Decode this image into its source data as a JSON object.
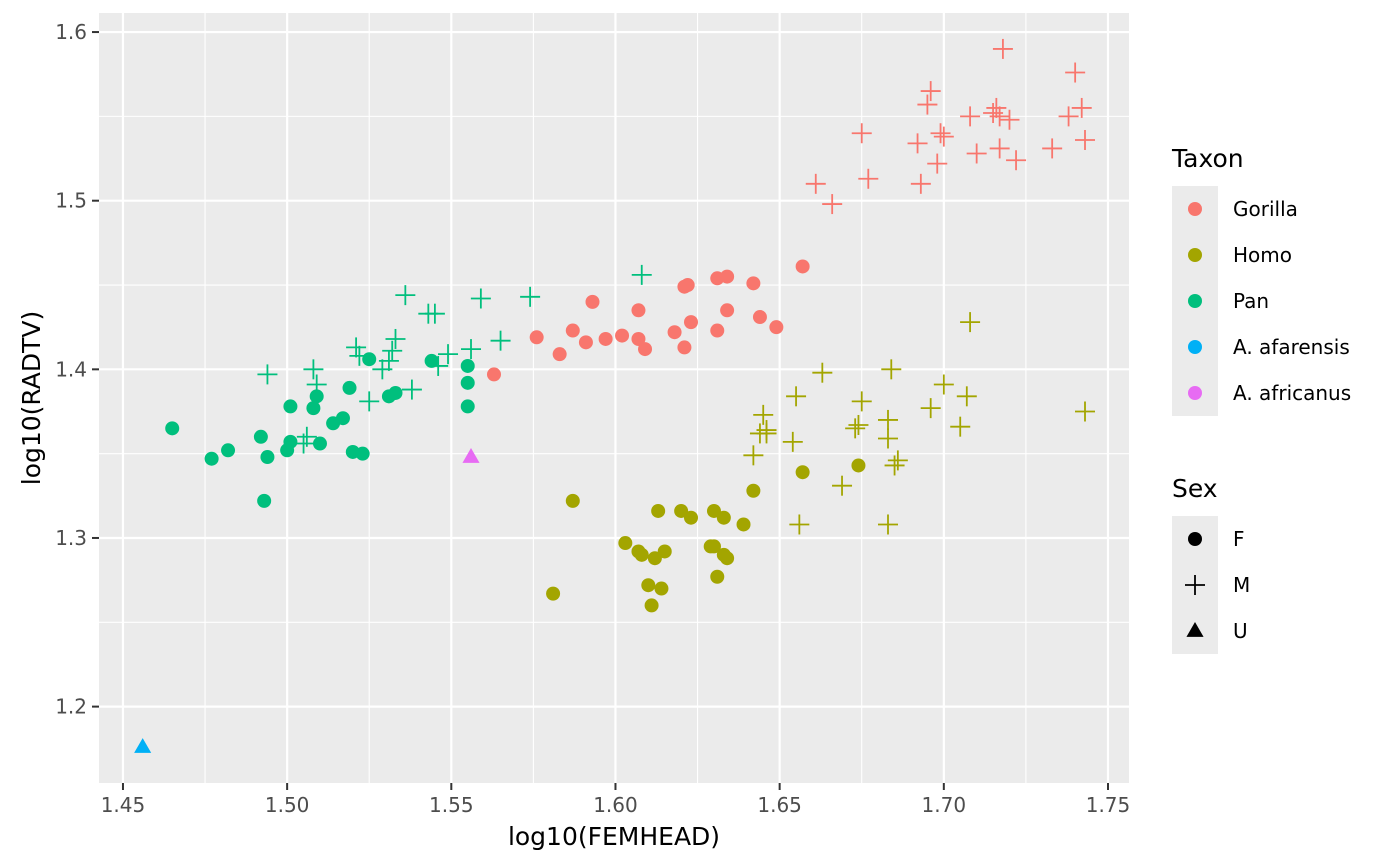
{
  "chart_data": {
    "type": "scatter",
    "xlabel": "log10(FEMHEAD)",
    "ylabel": "log10(RADTV)",
    "xlim": [
      1.4427,
      1.7564
    ],
    "ylim": [
      1.1547,
      1.6113
    ],
    "x_ticks": [
      1.45,
      1.5,
      1.55,
      1.6,
      1.65,
      1.7,
      1.75
    ],
    "x_tick_labels": [
      "1.45",
      "1.50",
      "1.55",
      "1.60",
      "1.65",
      "1.70",
      "1.75"
    ],
    "y_ticks": [
      1.2,
      1.3,
      1.4,
      1.5,
      1.6
    ],
    "y_tick_labels": [
      "1.2",
      "1.3",
      "1.4",
      "1.5",
      "1.6"
    ],
    "grid": true,
    "background": "#ebebeb",
    "legend_position": "right",
    "legend": {
      "color_title": "Taxon",
      "color_entries": [
        {
          "label": "Gorilla",
          "color": "#f8766d"
        },
        {
          "label": "Homo",
          "color": "#a3a500"
        },
        {
          "label": "Pan",
          "color": "#00bf7d"
        },
        {
          "label": "A. afarensis",
          "color": "#00b0f6"
        },
        {
          "label": "A. africanus",
          "color": "#e76bf3"
        }
      ],
      "shape_title": "Sex",
      "shape_entries": [
        {
          "label": "F",
          "shape": "circle"
        },
        {
          "label": "M",
          "shape": "plus"
        },
        {
          "label": "U",
          "shape": "triangle"
        }
      ]
    },
    "series": [
      {
        "name": "Gorilla",
        "sex": "F",
        "color": "#f8766d",
        "shape": "circle",
        "points": [
          [
            1.563,
            1.397
          ],
          [
            1.576,
            1.419
          ],
          [
            1.583,
            1.409
          ],
          [
            1.587,
            1.423
          ],
          [
            1.591,
            1.416
          ],
          [
            1.593,
            1.44
          ],
          [
            1.597,
            1.418
          ],
          [
            1.602,
            1.42
          ],
          [
            1.607,
            1.435
          ],
          [
            1.607,
            1.418
          ],
          [
            1.609,
            1.412
          ],
          [
            1.618,
            1.422
          ],
          [
            1.621,
            1.413
          ],
          [
            1.621,
            1.449
          ],
          [
            1.622,
            1.45
          ],
          [
            1.623,
            1.428
          ],
          [
            1.631,
            1.454
          ],
          [
            1.631,
            1.423
          ],
          [
            1.634,
            1.455
          ],
          [
            1.634,
            1.435
          ],
          [
            1.642,
            1.451
          ],
          [
            1.644,
            1.431
          ],
          [
            1.649,
            1.425
          ],
          [
            1.657,
            1.461
          ]
        ]
      },
      {
        "name": "Gorilla",
        "sex": "M",
        "color": "#f8766d",
        "shape": "plus",
        "points": [
          [
            1.661,
            1.51
          ],
          [
            1.666,
            1.498
          ],
          [
            1.675,
            1.54
          ],
          [
            1.677,
            1.513
          ],
          [
            1.692,
            1.534
          ],
          [
            1.693,
            1.51
          ],
          [
            1.695,
            1.557
          ],
          [
            1.696,
            1.565
          ],
          [
            1.698,
            1.522
          ],
          [
            1.699,
            1.54
          ],
          [
            1.7,
            1.538
          ],
          [
            1.708,
            1.55
          ],
          [
            1.71,
            1.528
          ],
          [
            1.715,
            1.552
          ],
          [
            1.716,
            1.555
          ],
          [
            1.717,
            1.531
          ],
          [
            1.717,
            1.55
          ],
          [
            1.718,
            1.59
          ],
          [
            1.72,
            1.548
          ],
          [
            1.722,
            1.524
          ],
          [
            1.733,
            1.531
          ],
          [
            1.738,
            1.55
          ],
          [
            1.74,
            1.576
          ],
          [
            1.742,
            1.555
          ],
          [
            1.743,
            1.536
          ]
        ]
      },
      {
        "name": "Homo",
        "sex": "F",
        "color": "#a3a500",
        "shape": "circle",
        "points": [
          [
            1.581,
            1.267
          ],
          [
            1.587,
            1.322
          ],
          [
            1.603,
            1.297
          ],
          [
            1.607,
            1.292
          ],
          [
            1.608,
            1.29
          ],
          [
            1.61,
            1.272
          ],
          [
            1.611,
            1.26
          ],
          [
            1.612,
            1.288
          ],
          [
            1.613,
            1.316
          ],
          [
            1.614,
            1.27
          ],
          [
            1.615,
            1.292
          ],
          [
            1.62,
            1.316
          ],
          [
            1.623,
            1.312
          ],
          [
            1.629,
            1.295
          ],
          [
            1.63,
            1.316
          ],
          [
            1.63,
            1.295
          ],
          [
            1.631,
            1.277
          ],
          [
            1.633,
            1.312
          ],
          [
            1.633,
            1.29
          ],
          [
            1.634,
            1.288
          ],
          [
            1.639,
            1.308
          ],
          [
            1.642,
            1.328
          ],
          [
            1.657,
            1.339
          ],
          [
            1.674,
            1.343
          ]
        ]
      },
      {
        "name": "Homo",
        "sex": "M",
        "color": "#a3a500",
        "shape": "plus",
        "points": [
          [
            1.642,
            1.349
          ],
          [
            1.644,
            1.362
          ],
          [
            1.645,
            1.373
          ],
          [
            1.646,
            1.364
          ],
          [
            1.646,
            1.362
          ],
          [
            1.654,
            1.357
          ],
          [
            1.655,
            1.384
          ],
          [
            1.656,
            1.308
          ],
          [
            1.663,
            1.398
          ],
          [
            1.669,
            1.331
          ],
          [
            1.673,
            1.365
          ],
          [
            1.674,
            1.367
          ],
          [
            1.675,
            1.381
          ],
          [
            1.683,
            1.37
          ],
          [
            1.683,
            1.359
          ],
          [
            1.683,
            1.308
          ],
          [
            1.684,
            1.4
          ],
          [
            1.685,
            1.343
          ],
          [
            1.686,
            1.346
          ],
          [
            1.696,
            1.377
          ],
          [
            1.7,
            1.391
          ],
          [
            1.705,
            1.366
          ],
          [
            1.707,
            1.384
          ],
          [
            1.708,
            1.428
          ],
          [
            1.743,
            1.375
          ]
        ]
      },
      {
        "name": "Pan",
        "sex": "F",
        "color": "#00bf7d",
        "shape": "circle",
        "points": [
          [
            1.465,
            1.365
          ],
          [
            1.477,
            1.347
          ],
          [
            1.482,
            1.352
          ],
          [
            1.492,
            1.36
          ],
          [
            1.493,
            1.322
          ],
          [
            1.494,
            1.348
          ],
          [
            1.5,
            1.352
          ],
          [
            1.501,
            1.357
          ],
          [
            1.501,
            1.378
          ],
          [
            1.508,
            1.377
          ],
          [
            1.509,
            1.384
          ],
          [
            1.51,
            1.356
          ],
          [
            1.514,
            1.368
          ],
          [
            1.517,
            1.371
          ],
          [
            1.519,
            1.389
          ],
          [
            1.52,
            1.351
          ],
          [
            1.523,
            1.35
          ],
          [
            1.525,
            1.406
          ],
          [
            1.531,
            1.384
          ],
          [
            1.533,
            1.386
          ],
          [
            1.544,
            1.405
          ],
          [
            1.555,
            1.378
          ],
          [
            1.555,
            1.392
          ],
          [
            1.555,
            1.402
          ]
        ]
      },
      {
        "name": "Pan",
        "sex": "M",
        "color": "#00bf7d",
        "shape": "plus",
        "points": [
          [
            1.494,
            1.397
          ],
          [
            1.505,
            1.356
          ],
          [
            1.506,
            1.36
          ],
          [
            1.508,
            1.4
          ],
          [
            1.509,
            1.391
          ],
          [
            1.521,
            1.413
          ],
          [
            1.522,
            1.408
          ],
          [
            1.525,
            1.381
          ],
          [
            1.529,
            1.4
          ],
          [
            1.531,
            1.405
          ],
          [
            1.532,
            1.411
          ],
          [
            1.533,
            1.418
          ],
          [
            1.536,
            1.444
          ],
          [
            1.538,
            1.388
          ],
          [
            1.543,
            1.433
          ],
          [
            1.545,
            1.433
          ],
          [
            1.546,
            1.402
          ],
          [
            1.549,
            1.409
          ],
          [
            1.556,
            1.412
          ],
          [
            1.559,
            1.442
          ],
          [
            1.565,
            1.417
          ],
          [
            1.574,
            1.443
          ],
          [
            1.608,
            1.456
          ]
        ]
      },
      {
        "name": "A. afarensis",
        "sex": "U",
        "color": "#00b0f6",
        "shape": "triangle",
        "points": [
          [
            1.456,
            1.176
          ]
        ]
      },
      {
        "name": "A. africanus",
        "sex": "U",
        "color": "#e76bf3",
        "shape": "triangle",
        "points": [
          [
            1.556,
            1.348
          ]
        ]
      }
    ]
  }
}
